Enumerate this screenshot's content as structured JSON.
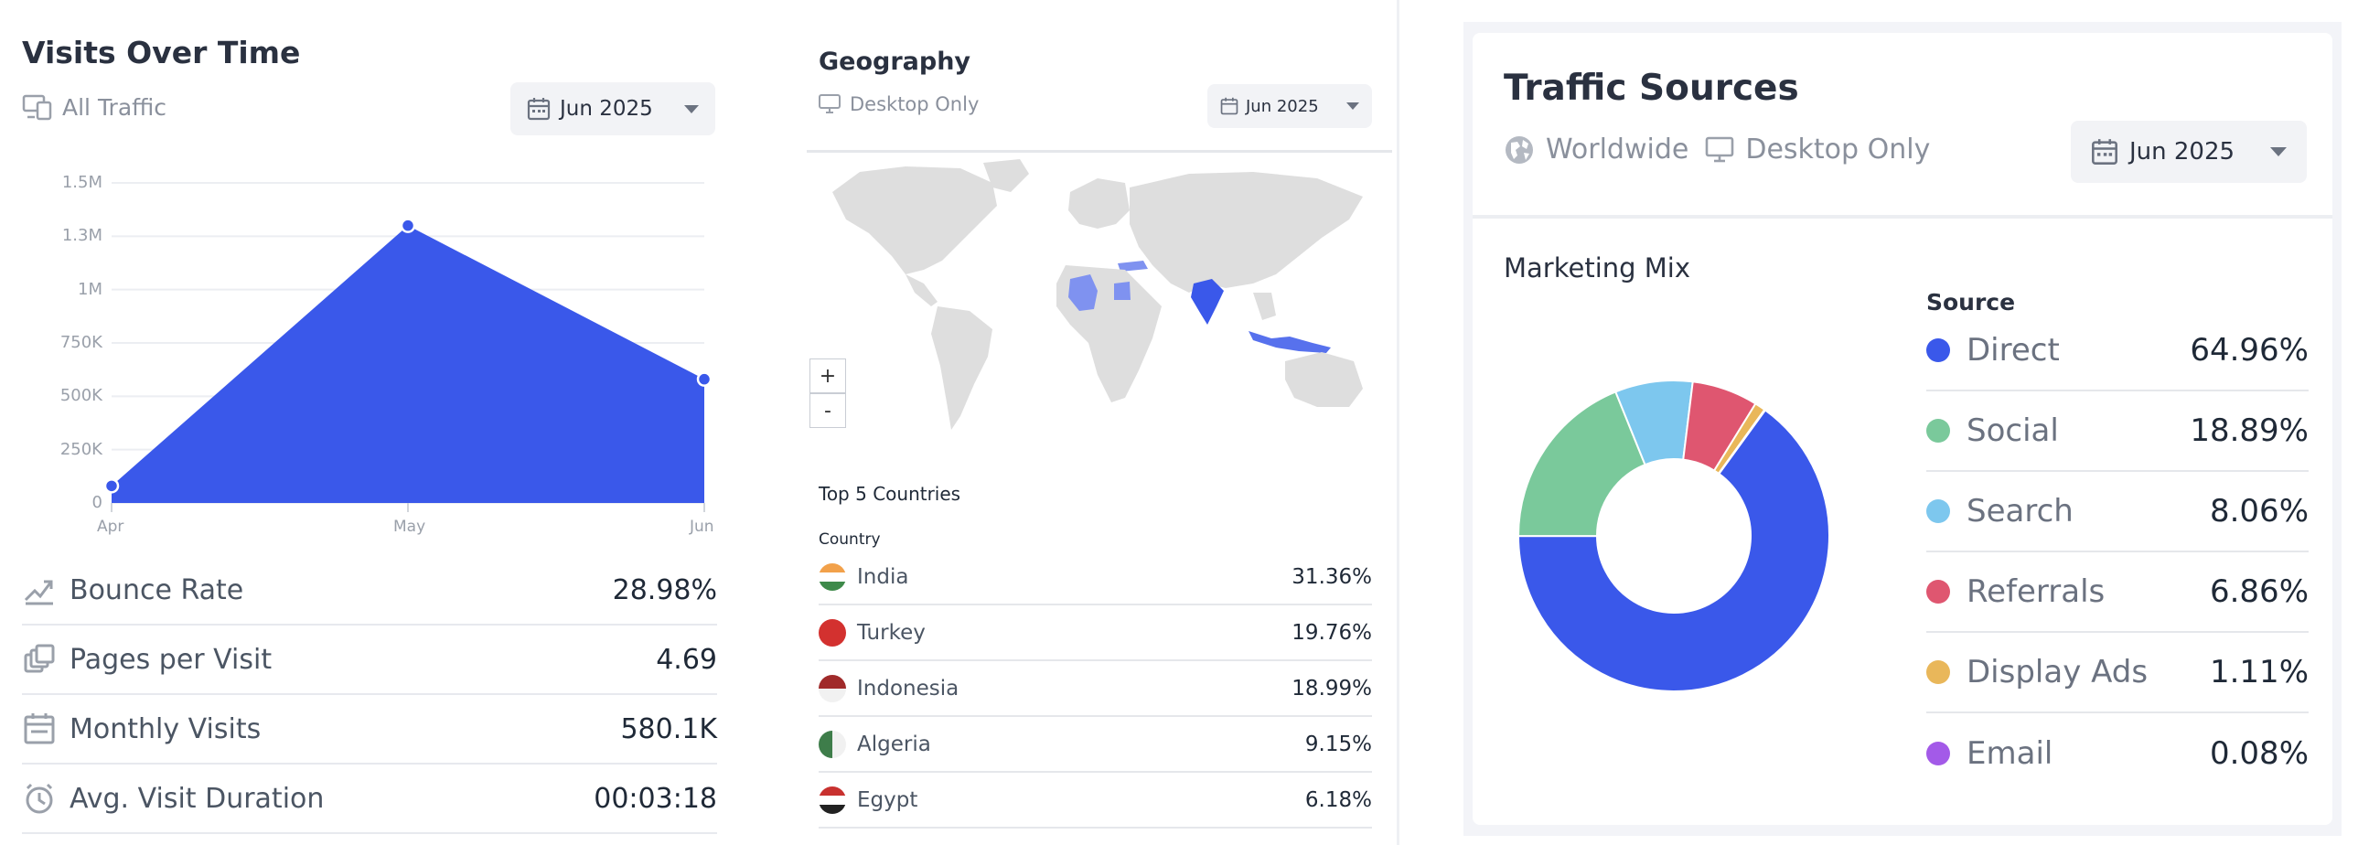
{
  "visits": {
    "title": "Visits Over Time",
    "filter": "All Traffic",
    "date": "Jun 2025",
    "metrics": [
      {
        "label": "Bounce Rate",
        "value": "28.98%",
        "icon": "trend-icon"
      },
      {
        "label": "Pages per Visit",
        "value": "4.69",
        "icon": "pages-icon"
      },
      {
        "label": "Monthly Visits",
        "value": "580.1K",
        "icon": "calendar-icon"
      },
      {
        "label": "Avg. Visit Duration",
        "value": "00:03:18",
        "icon": "timer-icon"
      }
    ]
  },
  "chart_data": {
    "type": "area",
    "categories": [
      "Apr",
      "May",
      "Jun"
    ],
    "values": [
      80000,
      1300000,
      580100
    ],
    "yticks": [
      "0",
      "250K",
      "500K",
      "750K",
      "1M",
      "1.3M",
      "1.5M"
    ],
    "ylim": [
      0,
      1500000
    ],
    "color": "#3a58ea",
    "title": "",
    "xlabel": "",
    "ylabel": ""
  },
  "geography": {
    "title": "Geography",
    "filter": "Desktop Only",
    "date": "Jun 2025",
    "zoom_in": "+",
    "zoom_out": "-",
    "top_title": "Top 5 Countries",
    "col_header": "Country",
    "countries": [
      {
        "name": "India",
        "value": "31.36%"
      },
      {
        "name": "Turkey",
        "value": "19.76%"
      },
      {
        "name": "Indonesia",
        "value": "18.99%"
      },
      {
        "name": "Algeria",
        "value": "9.15%"
      },
      {
        "name": "Egypt",
        "value": "6.18%"
      }
    ],
    "map_base_color": "#dedede",
    "map_highlight_color": "#3a58ea"
  },
  "traffic": {
    "title": "Traffic Sources",
    "filter1": "Worldwide",
    "filter2": "Desktop Only",
    "date": "Jun 2025",
    "mix_title": "Marketing Mix",
    "source_header": "Source",
    "sources": [
      {
        "name": "Direct",
        "value": "64.96%",
        "pct": 64.96,
        "color": "#3a58ea"
      },
      {
        "name": "Social",
        "value": "18.89%",
        "pct": 18.89,
        "color": "#7ac99b"
      },
      {
        "name": "Search",
        "value": "8.06%",
        "pct": 8.06,
        "color": "#7dc7ee"
      },
      {
        "name": "Referrals",
        "value": "6.86%",
        "pct": 6.86,
        "color": "#df5670"
      },
      {
        "name": "Display Ads",
        "value": "1.11%",
        "pct": 1.11,
        "color": "#e9b75a"
      },
      {
        "name": "Email",
        "value": "0.08%",
        "pct": 0.08,
        "color": "#a35ae8"
      }
    ]
  }
}
